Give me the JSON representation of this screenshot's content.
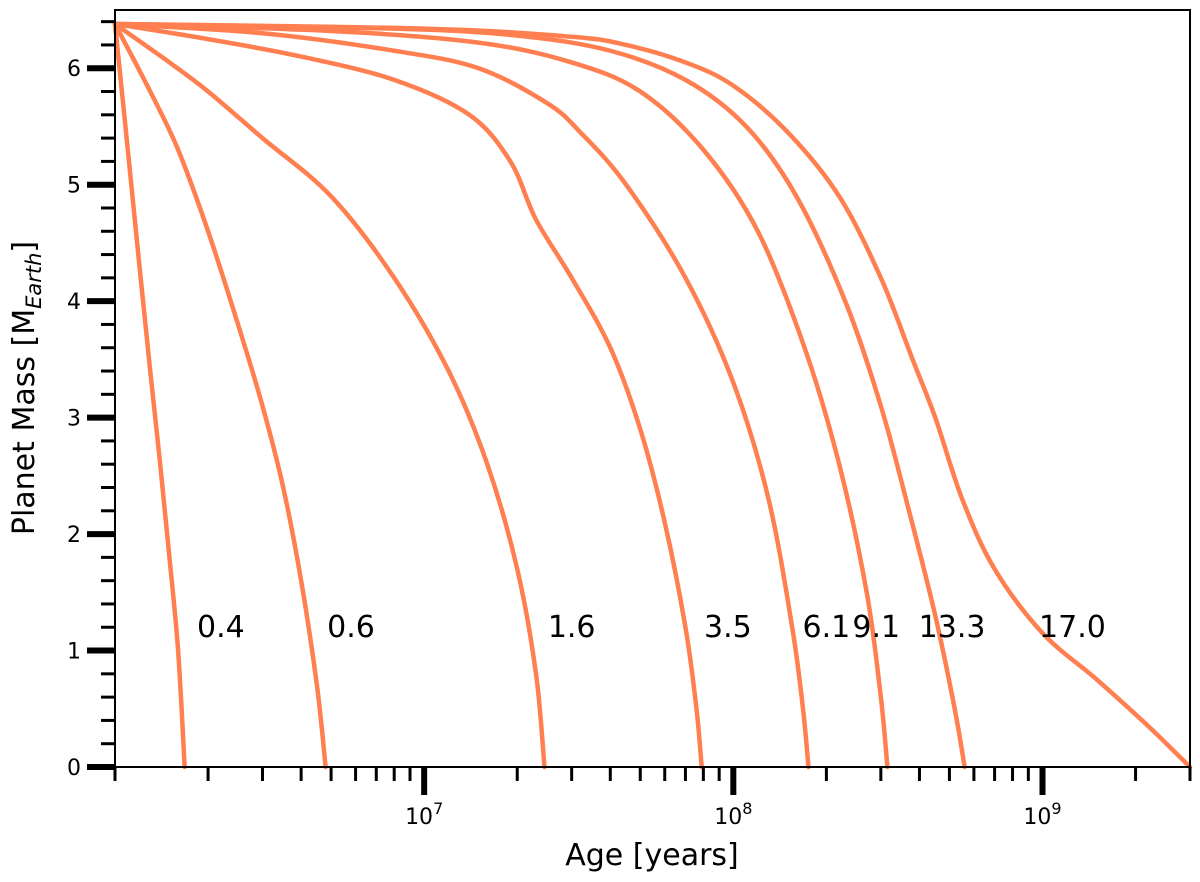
{
  "chart_data": {
    "type": "line",
    "title": "",
    "xlabel": "Age [years]",
    "ylabel_main": "Planet Mass [M",
    "ylabel_sub": "Earth",
    "ylabel_close": "]",
    "xscale": "log",
    "xlim": [
      1000000,
      3000000000
    ],
    "ylim": [
      0,
      6.5
    ],
    "grid": false,
    "legend": "none",
    "line_color": "#ff7f50",
    "y_ticks": [
      {
        "value": 0,
        "label": "0"
      },
      {
        "value": 1,
        "label": "1"
      },
      {
        "value": 2,
        "label": "2"
      },
      {
        "value": 3,
        "label": "3"
      },
      {
        "value": 4,
        "label": "4"
      },
      {
        "value": 5,
        "label": "5"
      },
      {
        "value": 6,
        "label": "6"
      }
    ],
    "x_ticks": [
      {
        "value": 10000000,
        "base": "10",
        "exp": "7"
      },
      {
        "value": 100000000,
        "base": "10",
        "exp": "8"
      },
      {
        "value": 1000000000,
        "base": "10",
        "exp": "9"
      }
    ],
    "series": [
      {
        "label": "0.4",
        "label_x": 2200000,
        "label_y": 1.1,
        "points": [
          [
            1000000,
            6.38
          ],
          [
            1100000,
            5.3
          ],
          [
            1200000,
            4.3
          ],
          [
            1300000,
            3.4
          ],
          [
            1400000,
            2.6
          ],
          [
            1500000,
            1.8
          ],
          [
            1600000,
            1.0
          ],
          [
            1680000,
            0.0
          ]
        ]
      },
      {
        "label": "0.6",
        "label_x": 5800000,
        "label_y": 1.1,
        "points": [
          [
            1000000,
            6.38
          ],
          [
            1300000,
            5.8
          ],
          [
            1600000,
            5.3
          ],
          [
            2000000,
            4.6
          ],
          [
            2500000,
            3.8
          ],
          [
            3000000,
            3.1
          ],
          [
            3500000,
            2.4
          ],
          [
            4000000,
            1.6
          ],
          [
            4500000,
            0.7
          ],
          [
            4800000,
            0.0
          ]
        ]
      },
      {
        "label": "1.6",
        "label_x": 30000000,
        "label_y": 1.1,
        "points": [
          [
            1000000,
            6.38
          ],
          [
            1500000,
            6.05
          ],
          [
            2000000,
            5.8
          ],
          [
            3000000,
            5.4
          ],
          [
            5000000,
            4.9
          ],
          [
            8000000,
            4.2
          ],
          [
            12000000,
            3.4
          ],
          [
            16000000,
            2.6
          ],
          [
            20000000,
            1.7
          ],
          [
            23000000,
            0.8
          ],
          [
            24500000,
            0.0
          ]
        ]
      },
      {
        "label": "3.5",
        "label_x": 96000000,
        "label_y": 1.1,
        "points": [
          [
            1000000,
            6.38
          ],
          [
            2000000,
            6.25
          ],
          [
            4000000,
            6.1
          ],
          [
            8000000,
            5.9
          ],
          [
            14000000,
            5.6
          ],
          [
            19000000,
            5.2
          ],
          [
            23000000,
            4.7
          ],
          [
            30000000,
            4.2
          ],
          [
            40000000,
            3.6
          ],
          [
            50000000,
            2.9
          ],
          [
            60000000,
            2.1
          ],
          [
            70000000,
            1.2
          ],
          [
            76000000,
            0.5
          ],
          [
            79000000,
            0.0
          ]
        ]
      },
      {
        "label": "6.1",
        "label_x": 200000000,
        "label_y": 1.1,
        "points": [
          [
            1000000,
            6.38
          ],
          [
            3000000,
            6.3
          ],
          [
            8000000,
            6.15
          ],
          [
            15000000,
            6.0
          ],
          [
            25000000,
            5.7
          ],
          [
            32000000,
            5.45
          ],
          [
            45000000,
            5.0
          ],
          [
            70000000,
            4.2
          ],
          [
            100000000,
            3.3
          ],
          [
            130000000,
            2.3
          ],
          [
            155000000,
            1.2
          ],
          [
            168000000,
            0.5
          ],
          [
            175000000,
            0.0
          ]
        ]
      },
      {
        "label": "9.1",
        "label_x": 290000000,
        "label_y": 1.1,
        "points": [
          [
            1000000,
            6.38
          ],
          [
            5000000,
            6.32
          ],
          [
            15000000,
            6.22
          ],
          [
            30000000,
            6.05
          ],
          [
            50000000,
            5.8
          ],
          [
            80000000,
            5.3
          ],
          [
            120000000,
            4.6
          ],
          [
            170000000,
            3.6
          ],
          [
            220000000,
            2.6
          ],
          [
            270000000,
            1.5
          ],
          [
            300000000,
            0.6
          ],
          [
            315000000,
            0.0
          ]
        ]
      },
      {
        "label": "13.3",
        "label_x": 510000000,
        "label_y": 1.1,
        "points": [
          [
            1000000,
            6.38
          ],
          [
            8000000,
            6.34
          ],
          [
            20000000,
            6.28
          ],
          [
            40000000,
            6.15
          ],
          [
            70000000,
            5.9
          ],
          [
            110000000,
            5.5
          ],
          [
            160000000,
            4.9
          ],
          [
            230000000,
            4.0
          ],
          [
            300000000,
            3.1
          ],
          [
            370000000,
            2.2
          ],
          [
            450000000,
            1.3
          ],
          [
            520000000,
            0.5
          ],
          [
            560000000,
            0.0
          ]
        ]
      },
      {
        "label": "17.0",
        "label_x": 1250000000,
        "label_y": 1.1,
        "points": [
          [
            1000000,
            6.38
          ],
          [
            10000000,
            6.34
          ],
          [
            30000000,
            6.27
          ],
          [
            45000000,
            6.2
          ],
          [
            70000000,
            6.05
          ],
          [
            100000000,
            5.85
          ],
          [
            150000000,
            5.45
          ],
          [
            220000000,
            4.9
          ],
          [
            300000000,
            4.2
          ],
          [
            380000000,
            3.5
          ],
          [
            450000000,
            3.0
          ],
          [
            550000000,
            2.3
          ],
          [
            700000000,
            1.7
          ],
          [
            1000000000,
            1.15
          ],
          [
            1500000000,
            0.75
          ],
          [
            2200000000,
            0.35
          ],
          [
            3000000000,
            0.0
          ]
        ]
      }
    ]
  }
}
